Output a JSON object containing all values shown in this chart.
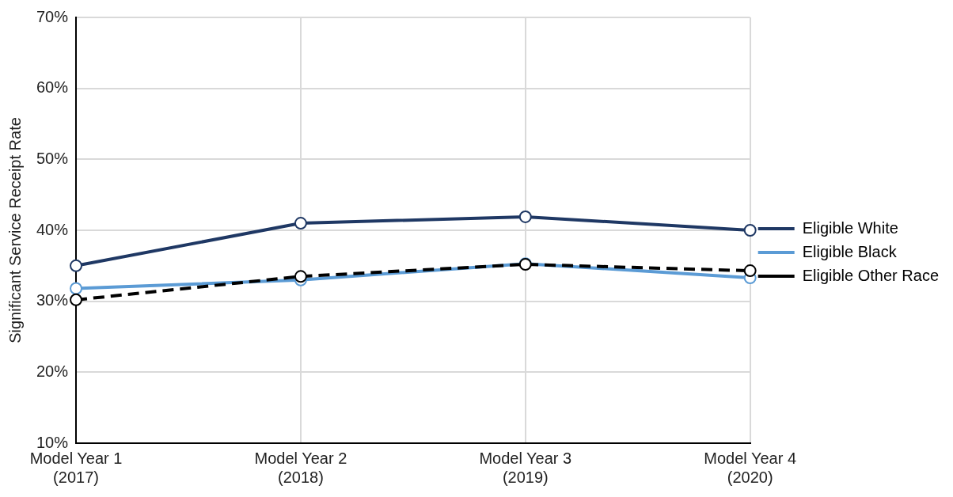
{
  "chart_data": {
    "type": "line",
    "ylabel": "Significant Service Receipt Rate",
    "categories": [
      "Model Year 1\n(2017)",
      "Model Year 2\n(2018)",
      "Model Year 3\n(2019)",
      "Model Year 4\n(2020)"
    ],
    "series": [
      {
        "name": "Eligible White",
        "color": "#1f3864",
        "values": [
          35.0,
          41.0,
          41.9,
          40.0
        ]
      },
      {
        "name": "Eligible Black",
        "color": "#5b9bd5",
        "values": [
          31.8,
          33.0,
          35.3,
          33.3
        ]
      },
      {
        "name": "Eligible Other Race",
        "color": "#000000",
        "line_style": "dashed",
        "values": [
          30.2,
          33.5,
          35.2,
          34.3
        ]
      }
    ],
    "ylim": [
      10,
      70
    ],
    "yticks": [
      {
        "value": 10,
        "label": "10%"
      },
      {
        "value": 20,
        "label": "20%"
      },
      {
        "value": 30,
        "label": "30%"
      },
      {
        "value": 40,
        "label": "40%"
      },
      {
        "value": 50,
        "label": "50%"
      },
      {
        "value": 60,
        "label": "60%"
      },
      {
        "value": 70,
        "label": "70%"
      }
    ],
    "grid": true,
    "legend": "right",
    "marker": "circle"
  }
}
